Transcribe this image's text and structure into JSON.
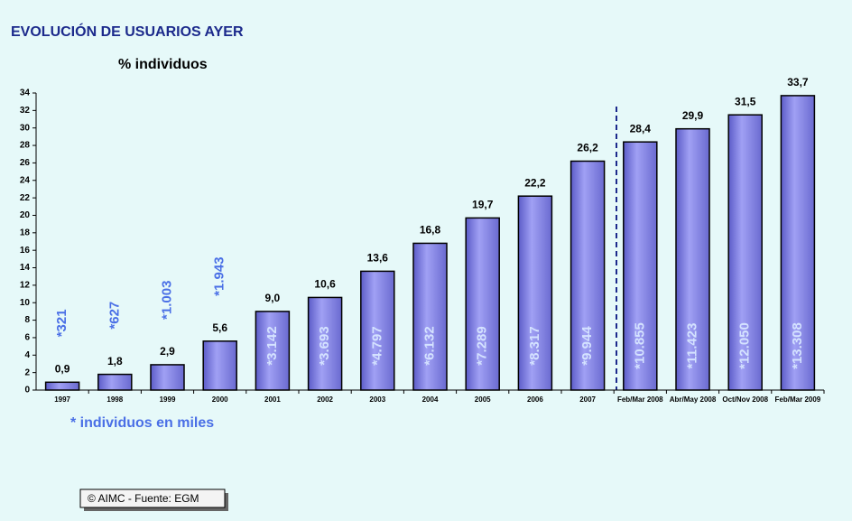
{
  "chart_data": {
    "type": "bar",
    "title": "EVOLUCIÓN DE USUARIOS AYER",
    "subtitle": "% individuos",
    "categories": [
      "1997",
      "1998",
      "1999",
      "2000",
      "2001",
      "2002",
      "2003",
      "2004",
      "2005",
      "2006",
      "2007",
      "Feb/Mar 2008",
      "Abr/May 2008",
      "Oct/Nov 2008",
      "Feb/Mar 2009"
    ],
    "values": [
      0.9,
      1.8,
      2.9,
      5.6,
      9.0,
      10.6,
      13.6,
      16.8,
      19.7,
      22.2,
      26.2,
      28.4,
      29.9,
      31.5,
      33.7
    ],
    "value_labels": [
      "0,9",
      "1,8",
      "2,9",
      "5,6",
      "9,0",
      "10,6",
      "13,6",
      "16,8",
      "19,7",
      "22,2",
      "26,2",
      "28,4",
      "29,9",
      "31,5",
      "33,7"
    ],
    "user_labels": [
      "*321",
      "*627",
      "*1.003",
      "*1.943",
      "*3.142",
      "*3.693",
      "*4.797",
      "*6.132",
      "*7.289",
      "*8.317",
      "*9.944",
      "*10.855",
      "*11.423",
      "*12.050",
      "*13.308"
    ],
    "note": "* individuos en miles",
    "source": "© AIMC - Fuente: EGM",
    "color": "#8484e4",
    "ylim": [
      0,
      34
    ],
    "yticks": [
      0,
      2,
      4,
      6,
      8,
      10,
      12,
      14,
      16,
      18,
      20,
      22,
      24,
      26,
      28,
      30,
      32,
      34
    ]
  }
}
